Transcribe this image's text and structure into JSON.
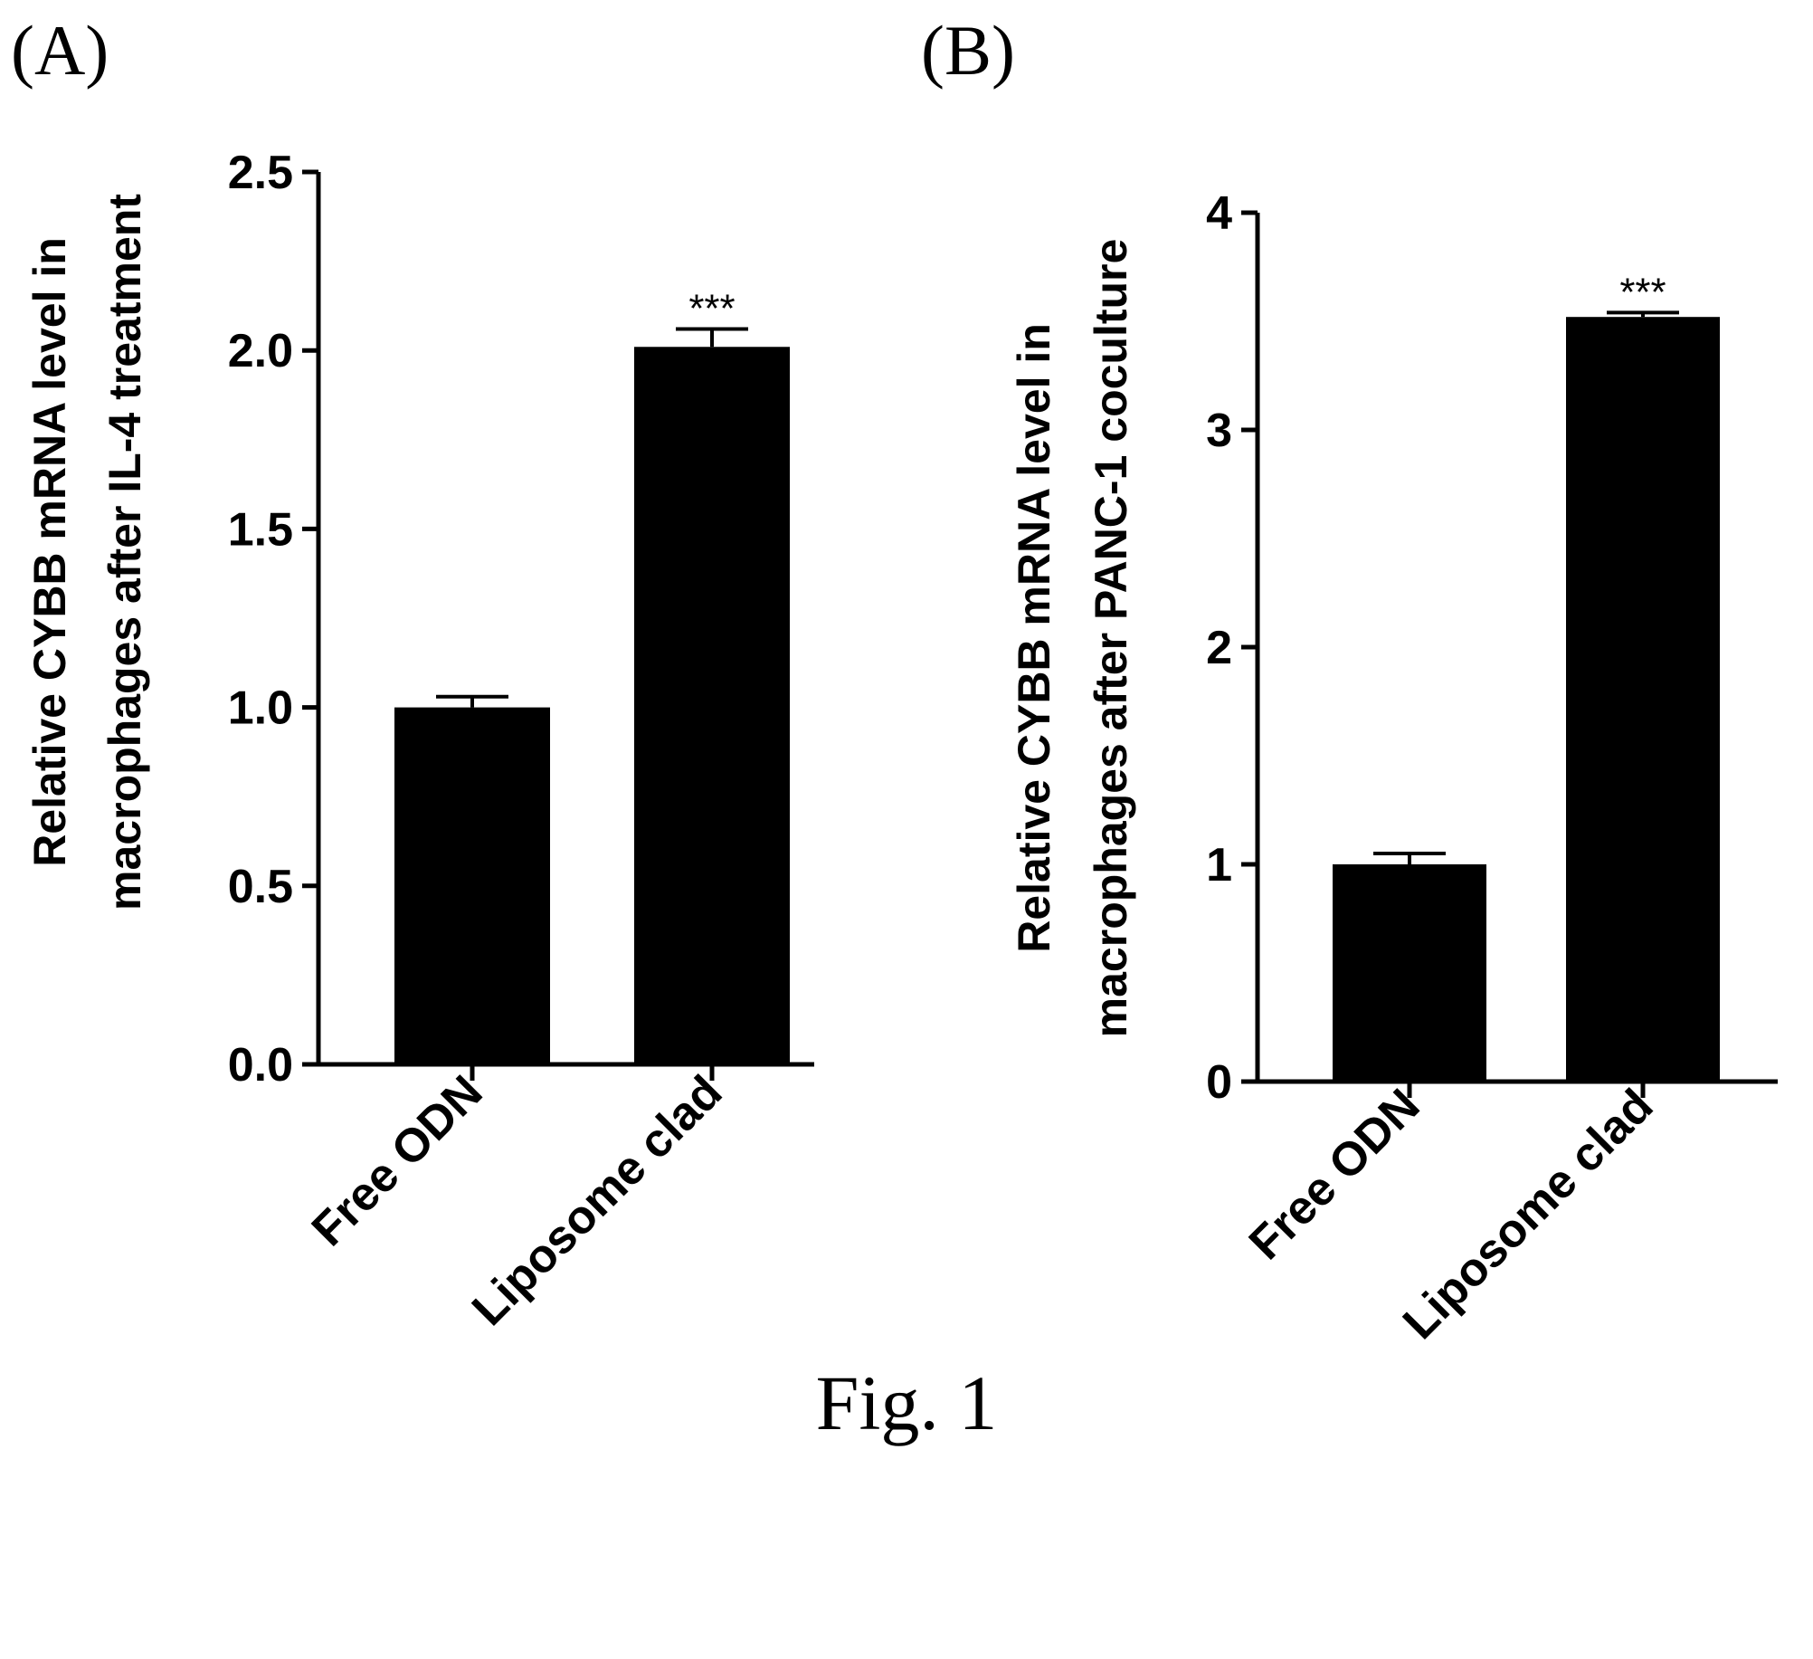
{
  "figure": {
    "caption": "Fig. 1"
  },
  "chart_data": [
    {
      "panel_label": "(A)",
      "type": "bar",
      "categories": [
        "Free ODN",
        "Liposome clad"
      ],
      "values": [
        1.0,
        2.01
      ],
      "errors": [
        0.03,
        0.05
      ],
      "significance": [
        "",
        "***"
      ],
      "ylabel": [
        "Relative CYBB mRNA level in",
        "macrophages after IL-4 treatment"
      ],
      "xlabel": "",
      "ylim": [
        0,
        2.5
      ],
      "yticks": [
        0,
        0.5,
        1.0,
        1.5,
        2.0,
        2.5
      ],
      "ytick_labels": [
        "0.0",
        "0.5",
        "1.0",
        "1.5",
        "2.0",
        "2.5"
      ],
      "bar_color": "#000000",
      "grid": false,
      "legend": "none"
    },
    {
      "panel_label": "(B)",
      "type": "bar",
      "categories": [
        "Free ODN",
        "Liposome clad"
      ],
      "values": [
        1.0,
        3.52
      ],
      "errors": [
        0.05,
        0.02
      ],
      "significance": [
        "",
        "***"
      ],
      "ylabel": [
        "Relative CYBB mRNA level in",
        "macrophages after PANC-1 coculture"
      ],
      "xlabel": "",
      "ylim": [
        0,
        4
      ],
      "yticks": [
        0,
        1,
        2,
        3,
        4
      ],
      "ytick_labels": [
        "0",
        "1",
        "2",
        "3",
        "4"
      ],
      "bar_color": "#000000",
      "grid": false,
      "legend": "none"
    }
  ]
}
